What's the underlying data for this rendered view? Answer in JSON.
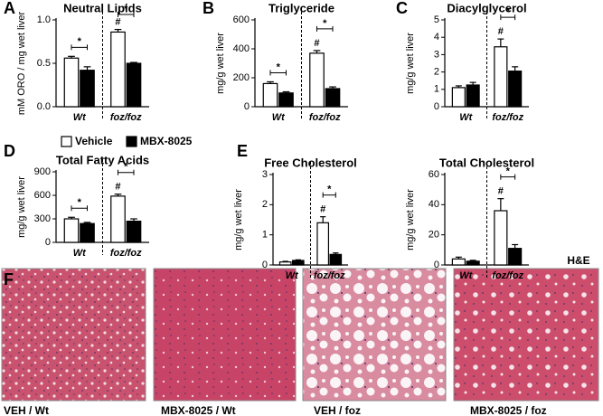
{
  "chart_data": [
    {
      "type": "bar",
      "panel": "A",
      "title": "Neutral Lipids",
      "ylabel": "mM ORO / mg wet liver",
      "categories": [
        "Wt",
        "foz/foz"
      ],
      "ylim": [
        0,
        1.0
      ],
      "yticks": [
        {
          "value": 0,
          "label": "0.0"
        },
        {
          "value": 0.5,
          "label": "0.5"
        },
        {
          "value": 1.0,
          "label": "1.0"
        }
      ],
      "bracket_labels": [
        "*",
        "*"
      ],
      "series": [
        {
          "name": "Vehicle",
          "color": "#ffffff",
          "values": [
            0.56,
            0.86
          ],
          "errors": [
            0.02,
            0.03
          ],
          "marks": [
            null,
            "#"
          ]
        },
        {
          "name": "MBX-8025",
          "color": "#000000",
          "values": [
            0.42,
            0.5
          ],
          "errors": [
            0.04,
            0.01
          ]
        }
      ]
    },
    {
      "type": "bar",
      "panel": "B",
      "title": "Triglyceride",
      "ylabel": "mg/g wet liver",
      "categories": [
        "Wt",
        "foz/foz"
      ],
      "ylim": [
        0,
        600
      ],
      "yticks": [
        0,
        200,
        400,
        600
      ],
      "bracket_labels": [
        "*",
        "*"
      ],
      "series": [
        {
          "name": "Vehicle",
          "color": "#ffffff",
          "values": [
            160,
            370
          ],
          "errors": [
            12,
            18
          ],
          "marks": [
            null,
            "#"
          ]
        },
        {
          "name": "MBX-8025",
          "color": "#000000",
          "values": [
            95,
            125
          ],
          "errors": [
            8,
            12
          ]
        }
      ]
    },
    {
      "type": "bar",
      "panel": "C",
      "title": "Diacylglycerol",
      "ylabel": "mg/g wet liver",
      "categories": [
        "Wt",
        "foz/foz"
      ],
      "ylim": [
        0,
        5
      ],
      "yticks": [
        0,
        1,
        2,
        3,
        4,
        5
      ],
      "bracket_labels": [
        null,
        "*"
      ],
      "series": [
        {
          "name": "Vehicle",
          "color": "#ffffff",
          "values": [
            1.1,
            3.45
          ],
          "errors": [
            0.1,
            0.45
          ],
          "marks": [
            null,
            "#"
          ]
        },
        {
          "name": "MBX-8025",
          "color": "#000000",
          "values": [
            1.25,
            2.05
          ],
          "errors": [
            0.15,
            0.25
          ]
        }
      ]
    },
    {
      "type": "bar",
      "panel": "D",
      "title": "Total Fatty Acids",
      "ylabel": "mg/g wet liver",
      "categories": [
        "Wt",
        "foz/foz"
      ],
      "ylim": [
        0,
        900
      ],
      "yticks": [
        0,
        300,
        600,
        900
      ],
      "bracket_labels": [
        "*",
        "*"
      ],
      "series": [
        {
          "name": "Vehicle",
          "color": "#ffffff",
          "values": [
            300,
            590
          ],
          "errors": [
            20,
            25
          ],
          "marks": [
            null,
            "#"
          ]
        },
        {
          "name": "MBX-8025",
          "color": "#000000",
          "values": [
            240,
            270
          ],
          "errors": [
            15,
            30
          ]
        }
      ]
    },
    {
      "type": "bar",
      "panel": "E",
      "title": "Free Cholesterol",
      "ylabel": "mg/g wet liver",
      "categories": [
        "Wt",
        "foz/foz"
      ],
      "ylim": [
        0,
        3
      ],
      "yticks": [
        0,
        1,
        2,
        3
      ],
      "bracket_labels": [
        null,
        "*"
      ],
      "series": [
        {
          "name": "Vehicle",
          "color": "#ffffff",
          "values": [
            0.1,
            1.4
          ],
          "errors": [
            0.02,
            0.2
          ],
          "marks": [
            null,
            "#"
          ]
        },
        {
          "name": "MBX-8025",
          "color": "#000000",
          "values": [
            0.15,
            0.35
          ],
          "errors": [
            0.02,
            0.05
          ]
        }
      ]
    },
    {
      "type": "bar",
      "title": "Total Cholesterol",
      "ylabel": "mg/g wet liver",
      "categories": [
        "Wt",
        "foz/foz"
      ],
      "ylim": [
        0,
        60
      ],
      "yticks": [
        0,
        20,
        40,
        60
      ],
      "bracket_labels": [
        null,
        "*"
      ],
      "series": [
        {
          "name": "Vehicle",
          "color": "#ffffff",
          "values": [
            4,
            36
          ],
          "errors": [
            1.2,
            8
          ],
          "marks": [
            null,
            "#"
          ]
        },
        {
          "name": "MBX-8025",
          "color": "#000000",
          "values": [
            2.5,
            11
          ],
          "errors": [
            0.6,
            2.5
          ]
        }
      ]
    }
  ],
  "histology": {
    "panel": "F",
    "stain": "H&E",
    "labels": [
      "VEH / Wt",
      "MBX-8025 / Wt",
      "VEH / foz",
      "MBX-8025 / foz"
    ]
  }
}
